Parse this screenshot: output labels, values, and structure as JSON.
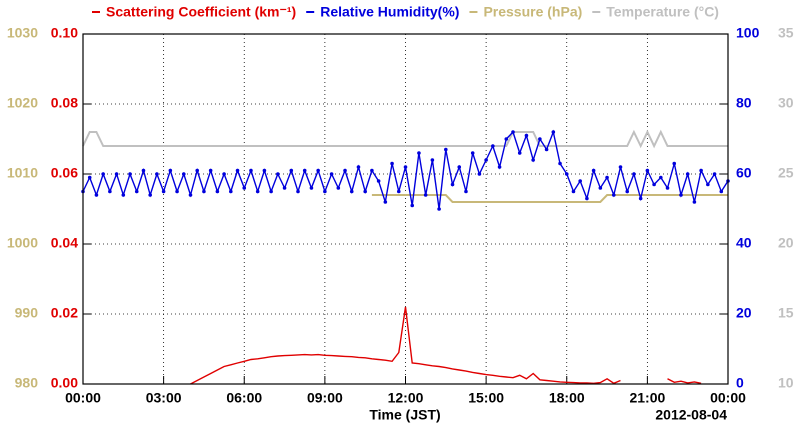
{
  "chart_data": {
    "type": "line",
    "xlabel": "Time (JST)",
    "annotation": "2012-08-04",
    "x": [
      0,
      15,
      30,
      45,
      60,
      75,
      90,
      105,
      120,
      135,
      150,
      165,
      180,
      195,
      210,
      225,
      240,
      255,
      270,
      285,
      300,
      315,
      330,
      345,
      360,
      375,
      390,
      405,
      420,
      435,
      450,
      465,
      480,
      495,
      510,
      525,
      540,
      555,
      570,
      585,
      600,
      615,
      630,
      645,
      660,
      675,
      690,
      705,
      720,
      735,
      750,
      765,
      780,
      795,
      810,
      825,
      840,
      855,
      870,
      885,
      900,
      915,
      930,
      945,
      960,
      975,
      990,
      1005,
      1020,
      1035,
      1050,
      1065,
      1080,
      1095,
      1110,
      1125,
      1140,
      1155,
      1170,
      1185,
      1200,
      1215,
      1230,
      1245,
      1260,
      1275,
      1290,
      1305,
      1320,
      1335,
      1350,
      1365,
      1380,
      1395,
      1410,
      1425,
      1440
    ],
    "xlim": [
      0,
      1440
    ],
    "xticks": [
      {
        "value": 0,
        "label": "00:00"
      },
      {
        "value": 180,
        "label": "03:00"
      },
      {
        "value": 360,
        "label": "06:00"
      },
      {
        "value": 540,
        "label": "09:00"
      },
      {
        "value": 720,
        "label": "12:00"
      },
      {
        "value": 900,
        "label": "15:00"
      },
      {
        "value": 1080,
        "label": "18:00"
      },
      {
        "value": 1260,
        "label": "21:00"
      },
      {
        "value": 1440,
        "label": "00:00"
      }
    ],
    "ylim": [
      0,
      0.1
    ],
    "yticks": [
      {
        "value": 0,
        "label": "0.00"
      },
      {
        "value": 0.02,
        "label": "0.02"
      },
      {
        "value": 0.04,
        "label": "0.04"
      },
      {
        "value": 0.06,
        "label": "0.06"
      },
      {
        "value": 0.08,
        "label": "0.08"
      },
      {
        "value": 0.1,
        "label": "0.10"
      }
    ],
    "y2lim": [
      0,
      100
    ],
    "y2ticks": [
      0,
      20,
      40,
      60,
      80,
      100
    ],
    "y3lim": [
      980,
      1030
    ],
    "y3ticks": [
      980,
      990,
      1000,
      1010,
      1020,
      1030
    ],
    "y4lim": [
      10,
      35
    ],
    "y4ticks": [
      10,
      15,
      20,
      25,
      30,
      35
    ],
    "grid": true,
    "series": [
      {
        "name": "Scattering Coefficient (km⁻¹)",
        "color": "#e00000",
        "axis": "y",
        "values": [
          null,
          null,
          null,
          null,
          null,
          null,
          null,
          null,
          0,
          null,
          null,
          null,
          null,
          null,
          null,
          null,
          0,
          0.001,
          0.002,
          0.003,
          0.004,
          0.005,
          0.0055,
          0.006,
          0.0065,
          0.007,
          0.0072,
          0.0075,
          0.0078,
          0.008,
          0.0081,
          0.0082,
          0.0083,
          0.0084,
          0.0083,
          0.0084,
          0.0082,
          0.0081,
          0.008,
          0.0079,
          0.0078,
          0.0076,
          0.0075,
          0.0072,
          0.007,
          0.0068,
          0.0065,
          0.009,
          0.022,
          0.006,
          0.0058,
          0.0055,
          0.0052,
          0.005,
          0.0047,
          0.0043,
          0.004,
          0.0037,
          0.0033,
          0.003,
          0.0027,
          0.0025,
          0.0022,
          0.002,
          0.0018,
          0.0025,
          0.0015,
          0.003,
          0.0012,
          0.001,
          0.0008,
          0.0006,
          0.0005,
          0.0004,
          0.0003,
          0.0003,
          0.0002,
          0.0004,
          0.0015,
          0.0002,
          0.001,
          null,
          null,
          null,
          null,
          null,
          null,
          0.0015,
          0.0005,
          0.0008,
          0.0003,
          0.0006,
          0.0002,
          null,
          null,
          null,
          null
        ]
      },
      {
        "name": "Relative Humidity(%)",
        "color": "#0000dd",
        "axis": "y2",
        "markers": true,
        "values": [
          55,
          59,
          54,
          60,
          55,
          60,
          54,
          60,
          55,
          61,
          54,
          60,
          55,
          61,
          55,
          60,
          54,
          61,
          55,
          61,
          55,
          60,
          55,
          61,
          56,
          61,
          55,
          61,
          55,
          60,
          56,
          61,
          55,
          61,
          56,
          61,
          55,
          60,
          56,
          61,
          55,
          62,
          55,
          61,
          58,
          52,
          63,
          55,
          62,
          51,
          66,
          54,
          64,
          50,
          67,
          57,
          62,
          55,
          66,
          60,
          64,
          68,
          62,
          70,
          72,
          66,
          71,
          64,
          70,
          67,
          72,
          63,
          60,
          55,
          58,
          53,
          61,
          56,
          59,
          54,
          62,
          55,
          60,
          53,
          61,
          57,
          59,
          56,
          63,
          54,
          60,
          52,
          61,
          57,
          60,
          55,
          58
        ]
      },
      {
        "name": "Pressure (hPa)",
        "color": "#c8b878",
        "axis": "y3",
        "values": [
          null,
          null,
          null,
          null,
          null,
          null,
          null,
          null,
          null,
          null,
          null,
          null,
          null,
          null,
          null,
          null,
          null,
          null,
          null,
          null,
          null,
          null,
          null,
          null,
          null,
          null,
          null,
          null,
          null,
          null,
          null,
          null,
          null,
          null,
          null,
          null,
          null,
          null,
          null,
          null,
          null,
          null,
          null,
          1007,
          1007,
          1007,
          1007,
          1007,
          1007,
          1007,
          1007,
          1007,
          1007,
          1007,
          1007,
          1006,
          1006,
          1006,
          1006,
          1006,
          1006,
          1006,
          1006,
          1006,
          1006,
          1006,
          1006,
          1006,
          1006,
          1006,
          1006,
          1006,
          1006,
          1006,
          1006,
          1006,
          1006,
          1006,
          1007,
          1007,
          1007,
          1007,
          1007,
          1007,
          1007,
          1007,
          1007,
          1007,
          1007,
          1007,
          1007,
          1007,
          1007,
          1007,
          1007,
          1007,
          1007
        ]
      },
      {
        "name": "Temperature (°C)",
        "color": "#c0c0c0",
        "axis": "y4",
        "values": [
          27,
          28,
          28,
          27,
          27,
          27,
          27,
          27,
          27,
          27,
          27,
          27,
          27,
          27,
          27,
          27,
          27,
          27,
          27,
          27,
          27,
          27,
          27,
          27,
          27,
          27,
          27,
          27,
          27,
          27,
          27,
          27,
          27,
          27,
          27,
          27,
          27,
          27,
          27,
          27,
          27,
          27,
          27,
          27,
          27,
          27,
          27,
          27,
          27,
          27,
          27,
          27,
          27,
          27,
          27,
          27,
          27,
          27,
          27,
          27,
          27,
          27,
          27,
          27,
          28,
          28,
          28,
          28,
          27,
          27,
          27,
          27,
          27,
          27,
          27,
          27,
          27,
          27,
          27,
          27,
          27,
          27,
          28,
          27,
          28,
          27,
          28,
          27,
          27,
          27,
          27,
          27,
          27,
          27,
          27,
          27,
          27
        ]
      }
    ]
  }
}
